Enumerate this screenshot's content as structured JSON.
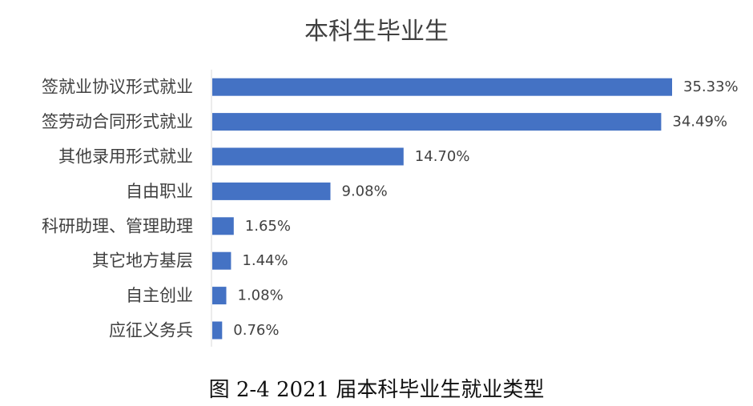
{
  "chart_data": {
    "type": "bar",
    "orientation": "horizontal",
    "title": "本科生毕业生",
    "categories": [
      "签就业协议形式就业",
      "签劳动合同形式就业",
      "其他录用形式就业",
      "自由职业",
      "科研助理、管理助理",
      "其它地方基层",
      "自主创业",
      "应征义务兵"
    ],
    "values": [
      35.33,
      34.49,
      14.7,
      9.08,
      1.65,
      1.44,
      1.08,
      0.76
    ],
    "value_labels": [
      "35.33%",
      "34.49%",
      "14.70%",
      "9.08%",
      "1.65%",
      "1.44%",
      "1.08%",
      "0.76%"
    ],
    "bar_color": "#4472C4",
    "grid": false,
    "legend": "none"
  },
  "caption": "图 2-4 2021 届本科毕业生就业类型"
}
